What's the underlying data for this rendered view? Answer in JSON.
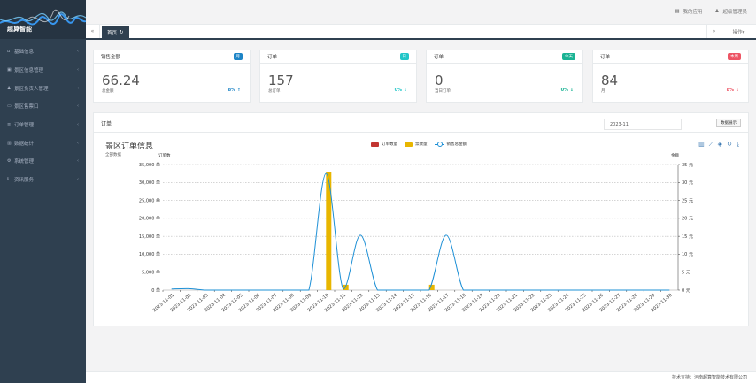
{
  "app": {
    "logo_text": "超算智能"
  },
  "sidebar": {
    "items": [
      {
        "icon": "home-icon",
        "glyph": "⌂",
        "label": "基础信息"
      },
      {
        "icon": "camera-icon",
        "glyph": "▣",
        "label": "景区信息管理"
      },
      {
        "icon": "user-icon",
        "glyph": "♟",
        "label": "景区负责人管理"
      },
      {
        "icon": "monitor-icon",
        "glyph": "▭",
        "label": "景区售票口"
      },
      {
        "icon": "list-icon",
        "glyph": "≡",
        "label": "订单管理"
      },
      {
        "icon": "bar-chart-icon",
        "glyph": "▥",
        "label": "数据统计"
      },
      {
        "icon": "gear-icon",
        "glyph": "⚙",
        "label": "系统管理"
      },
      {
        "icon": "info-icon",
        "glyph": "ℹ",
        "label": "资讯服务"
      }
    ]
  },
  "topbar": {
    "my_apps": "我的应用",
    "user": "超级管理员"
  },
  "tabs": {
    "home": "首页",
    "operations": "操作▾"
  },
  "cards": [
    {
      "title": "销售金额",
      "badge": "月",
      "badge_color": "#1c84c6",
      "value": "66.24",
      "sub": "总金额",
      "pct": "8% ↑",
      "pct_color": "#1c84c6"
    },
    {
      "title": "订单",
      "badge": "日",
      "badge_color": "#23c6c8",
      "value": "157",
      "sub": "总订单",
      "pct": "0% ↓",
      "pct_color": "#23c6c8"
    },
    {
      "title": "订单",
      "badge": "今天",
      "badge_color": "#1ab394",
      "value": "0",
      "sub": "当日订单",
      "pct": "0% ↓",
      "pct_color": "#1ab394"
    },
    {
      "title": "订单",
      "badge": "本周",
      "badge_color": "#ed5565",
      "value": "84",
      "sub": "月",
      "pct": "8% ↓",
      "pct_color": "#ed5565"
    }
  ],
  "panel": {
    "title": "订单",
    "month_value": "2023-11",
    "button_label": "数据展示"
  },
  "chart_data": {
    "type": "bar",
    "title": "景区订单信息",
    "subtitle": "全部数据",
    "y_left_name": "订单数",
    "y_right_name": "金额",
    "legend": [
      "订单数量",
      "票数量",
      "销售总金额"
    ],
    "colors": {
      "orders": "#c23531",
      "tickets": "#e8b600",
      "sales": "#1e90d6"
    },
    "ylim": [
      0,
      35000
    ],
    "y_ticks": [
      "0 单",
      "5,000 单",
      "10,000 单",
      "15,000 单",
      "20,000 单",
      "25,000 单",
      "30,000 单",
      "35,000 单"
    ],
    "y2lim": [
      0,
      35
    ],
    "y2_ticks": [
      "0 元",
      "5 元",
      "10 元",
      "15 元",
      "20 元",
      "25 元",
      "30 元",
      "35 元"
    ],
    "categories": [
      "2023-11-01",
      "2023-11-02",
      "2023-11-03",
      "2023-11-04",
      "2023-11-05",
      "2023-11-06",
      "2023-11-07",
      "2023-11-08",
      "2023-11-09",
      "2023-11-10",
      "2023-11-11",
      "2023-11-12",
      "2023-11-13",
      "2023-11-14",
      "2023-11-15",
      "2023-11-16",
      "2023-11-17",
      "2023-11-18",
      "2023-11-19",
      "2023-11-20",
      "2023-11-21",
      "2023-11-22",
      "2023-11-23",
      "2023-11-24",
      "2023-11-25",
      "2023-11-26",
      "2023-11-27",
      "2023-11-28",
      "2023-11-29",
      "2023-11-30"
    ],
    "series": [
      {
        "name": "订单数量",
        "kind": "bar",
        "values": [
          0,
          0,
          0,
          0,
          0,
          0,
          0,
          0,
          0,
          0,
          0,
          0,
          0,
          0,
          0,
          0,
          0,
          0,
          0,
          0,
          0,
          0,
          0,
          0,
          0,
          0,
          0,
          0,
          0,
          0
        ]
      },
      {
        "name": "票数量",
        "kind": "bar",
        "values": [
          0,
          0,
          0,
          0,
          0,
          0,
          0,
          0,
          0,
          33000,
          1500,
          0,
          0,
          0,
          0,
          1500,
          0,
          0,
          0,
          0,
          0,
          0,
          0,
          0,
          0,
          0,
          0,
          0,
          0,
          0
        ]
      },
      {
        "name": "销售总金额",
        "kind": "line",
        "axis": "right",
        "values": [
          0.3,
          0.4,
          0,
          0,
          0,
          0,
          0,
          0,
          0,
          32.5,
          0.3,
          15.3,
          0,
          0,
          0,
          0,
          15.3,
          0,
          0,
          0,
          0,
          0,
          0,
          0,
          0,
          0,
          0,
          0,
          0,
          0
        ]
      }
    ]
  },
  "footer": {
    "text": "技术支持：河南超算智能技术有限公司"
  }
}
